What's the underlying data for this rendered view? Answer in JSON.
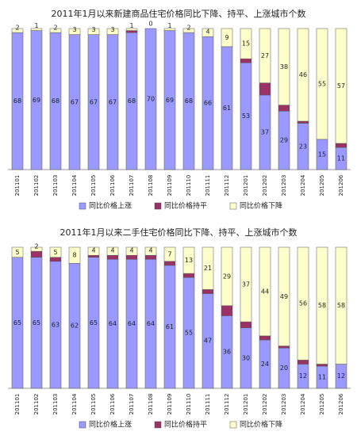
{
  "chart_data": [
    {
      "type": "stacked_bar",
      "title": "2011年1月以来新建商品住宅价格同比下降、持平、上涨城市个数",
      "categories": [
        "201101",
        "201102",
        "201103",
        "201104",
        "201105",
        "201106",
        "201107",
        "201108",
        "201109",
        "201110",
        "201111",
        "201112",
        "201201",
        "201202",
        "201203",
        "201204",
        "201205",
        "201206"
      ],
      "ylim": [
        0,
        70
      ],
      "legend": "bottom",
      "series": [
        {
          "name": "同比价格上涨",
          "color": "#9999ff",
          "values": [
            68,
            69,
            68,
            67,
            67,
            67,
            68,
            70,
            69,
            68,
            66,
            61,
            53,
            37,
            29,
            23,
            15,
            11
          ]
        },
        {
          "name": "同比价格持平",
          "color": "#993366",
          "values": [
            0,
            0,
            0,
            0,
            0,
            0,
            1,
            0,
            0,
            0,
            0,
            0,
            2,
            6,
            3,
            1,
            0,
            2
          ]
        },
        {
          "name": "同比价格下降",
          "color": "#ffffcc",
          "values": [
            2,
            1,
            2,
            3,
            3,
            3,
            1,
            0,
            1,
            2,
            4,
            9,
            15,
            27,
            38,
            46,
            55,
            57
          ]
        }
      ]
    },
    {
      "type": "stacked_bar",
      "title": "2011年1月以来二手住宅价格同比下降、持平、上涨城市个数",
      "categories": [
        "201101",
        "201102",
        "201103",
        "201104",
        "201105",
        "201106",
        "201107",
        "201108",
        "201109",
        "201110",
        "201111",
        "201112",
        "201201",
        "201202",
        "201203",
        "201204",
        "201205",
        "201206"
      ],
      "ylim": [
        0,
        70
      ],
      "legend": "bottom",
      "series": [
        {
          "name": "同比价格上涨",
          "color": "#9999ff",
          "values": [
            65,
            65,
            63,
            62,
            65,
            64,
            64,
            64,
            61,
            55,
            47,
            36,
            30,
            24,
            20,
            12,
            11,
            12
          ]
        },
        {
          "name": "同比价格持平",
          "color": "#993366",
          "values": [
            0,
            3,
            2,
            0,
            1,
            2,
            2,
            2,
            2,
            2,
            2,
            5,
            3,
            2,
            1,
            2,
            1,
            0
          ]
        },
        {
          "name": "同比价格下降",
          "color": "#ffffcc",
          "values": [
            5,
            2,
            5,
            8,
            4,
            4,
            4,
            4,
            7,
            13,
            21,
            29,
            37,
            44,
            49,
            56,
            58,
            58
          ]
        }
      ]
    }
  ]
}
